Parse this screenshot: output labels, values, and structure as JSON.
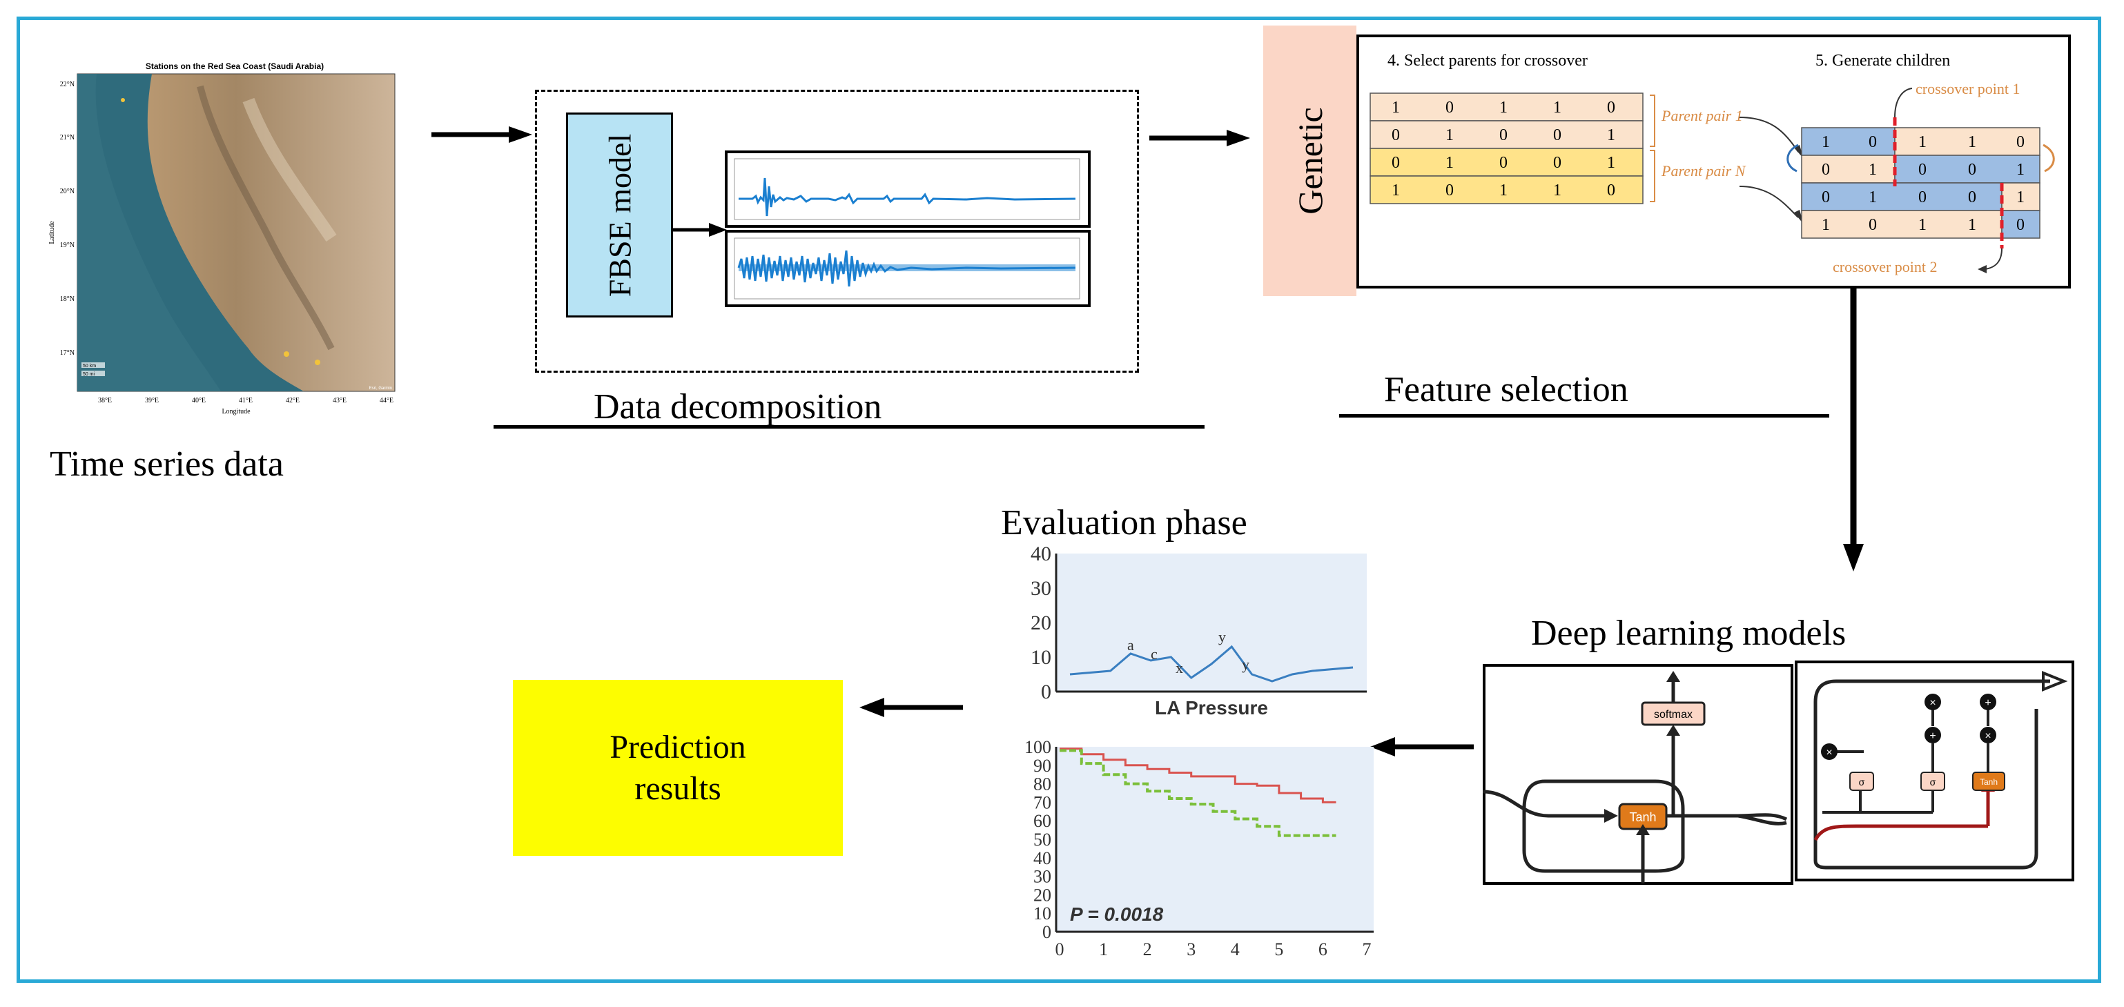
{
  "colors": {
    "frame": "#29a9d6",
    "fbse_box": "#b7e3f4",
    "genetic_box": "#fbd6c6",
    "prediction_box": "#fdfd00",
    "signal": "#1a7fd0",
    "chromosome_orange": "#fbe3cc",
    "chromosome_yellow": "#ffe38a",
    "chromosome_blue": "#9dbde3",
    "crossover_red": "#e0202a",
    "lstm_gate": "#e07a1a",
    "curve_red": "#d9534f",
    "curve_green": "#7bbf3a",
    "plot_bg": "#e6eef8"
  },
  "map": {
    "title": "Stations on the Red Sea Coast (Saudi Arabia)",
    "xlabel": "Longitude",
    "ylabel": "Latitude",
    "lat_ticks": [
      "22°N",
      "21°N",
      "20°N",
      "19°N",
      "18°N",
      "17°N"
    ],
    "lon_ticks": [
      "38°E",
      "39°E",
      "40°E",
      "41°E",
      "42°E",
      "43°E",
      "44°E"
    ],
    "scale_top": "50 km",
    "scale_bottom": "50 mi",
    "credit": "Esri, Garmin"
  },
  "labels": {
    "time_series": "Time series data",
    "data_decomposition": "Data decomposition",
    "fbse_model": "FBSE model",
    "genetic": "Genetic",
    "feature_selection": "Feature selection",
    "deep_learning": "Deep learning models",
    "evaluation_phase": "Evaluation phase",
    "prediction_results": "Prediction results"
  },
  "genetic": {
    "step4_title": "4. Select parents for crossover",
    "step5_title": "5. Generate children",
    "parent_rows": [
      [
        "1",
        "0",
        "1",
        "1",
        "0"
      ],
      [
        "0",
        "1",
        "0",
        "0",
        "1"
      ],
      [
        "0",
        "1",
        "0",
        "0",
        "1"
      ],
      [
        "1",
        "0",
        "1",
        "1",
        "0"
      ]
    ],
    "parent_pair_1": "Parent pair 1",
    "parent_pair_n": "Parent pair N",
    "child_rows": [
      [
        "1",
        "0",
        "1",
        "1",
        "0"
      ],
      [
        "0",
        "1",
        "0",
        "0",
        "1"
      ],
      [
        "0",
        "1",
        "0",
        "0",
        "1"
      ],
      [
        "1",
        "0",
        "1",
        "1",
        "0"
      ]
    ],
    "crossover_point_1": "crossover point 1",
    "crossover_point_2": "crossover point 2"
  },
  "rnn": {
    "softmax": "softmax",
    "tanh": "Tanh"
  },
  "lstm": {
    "sigma": "σ",
    "tanh": "Tanh",
    "multiply": "×",
    "add": "+"
  },
  "eval_plot_1": {
    "xlabel": "LA Pressure",
    "y_ticks": [
      "40",
      "30",
      "20",
      "10",
      "0"
    ],
    "annotations": [
      "a",
      "c",
      "x",
      "y",
      "y"
    ]
  },
  "chart_data": [
    {
      "type": "line",
      "title": "",
      "xlabel": "LA Pressure",
      "ylabel": "",
      "ylim": [
        0,
        40
      ],
      "series": [
        {
          "name": "curve",
          "x": [
            0,
            1,
            1.5,
            2,
            2.5,
            3,
            3.5,
            4,
            4.5,
            5,
            5.5,
            6,
            7
          ],
          "values": [
            5,
            6,
            11,
            9,
            10,
            4,
            8,
            13,
            5,
            3,
            5,
            6,
            7
          ]
        }
      ],
      "annotations": [
        "a",
        "c",
        "x",
        "y",
        "y"
      ]
    },
    {
      "type": "line",
      "title": "",
      "xlabel": "",
      "ylabel": "",
      "xlim": [
        0,
        7
      ],
      "ylim": [
        0,
        100
      ],
      "x_ticks": [
        "0",
        "1",
        "2",
        "3",
        "4",
        "5",
        "6",
        "7"
      ],
      "y_ticks": [
        "100",
        "90",
        "80",
        "70",
        "60",
        "50",
        "40",
        "30",
        "20",
        "10",
        "0"
      ],
      "annotation": "P = 0.0018",
      "series": [
        {
          "name": "upper",
          "x": [
            0,
            0.5,
            1,
            1.5,
            2,
            2.5,
            3,
            3.5,
            4,
            4.5,
            5,
            5.5,
            6,
            6.3
          ],
          "values": [
            99,
            96,
            93,
            90,
            88,
            86,
            84,
            84,
            80,
            79,
            75,
            72,
            70,
            70
          ]
        },
        {
          "name": "lower",
          "x": [
            0,
            0.5,
            1,
            1.5,
            2,
            2.5,
            3,
            3.5,
            4,
            4.5,
            5,
            5.5,
            6,
            6.3
          ],
          "values": [
            98,
            91,
            85,
            80,
            76,
            72,
            69,
            65,
            61,
            57,
            52,
            52,
            52,
            52
          ]
        }
      ]
    }
  ]
}
